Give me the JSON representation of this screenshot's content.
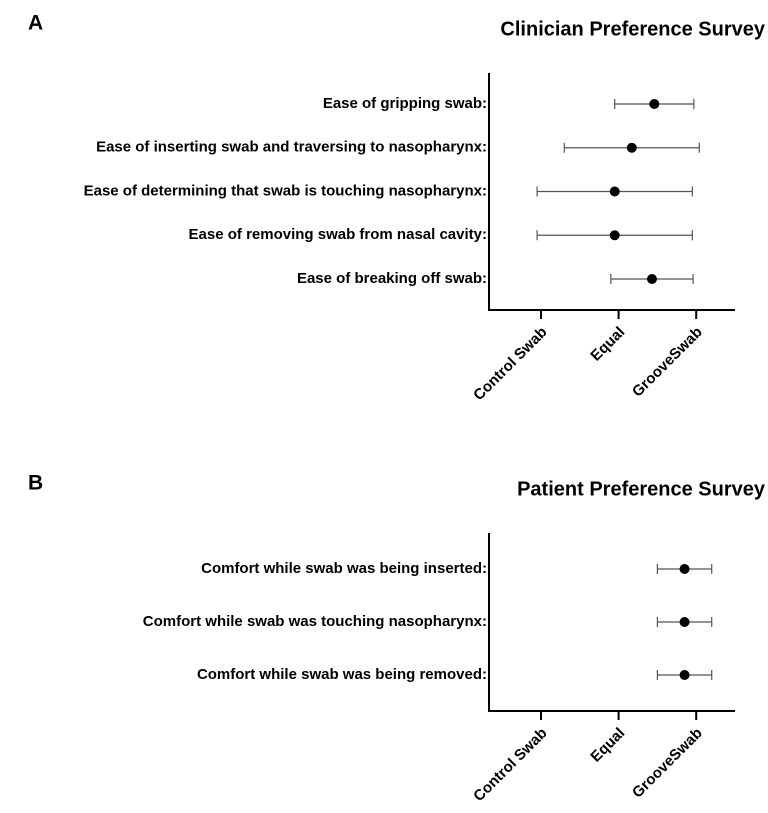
{
  "chart_data": [
    {
      "type": "dot",
      "panel_label": "A",
      "title": "Clinician Preference Survey",
      "categories": [
        "Ease of gripping swab:",
        "Ease of inserting swab and traversing to nasopharynx:",
        "Ease of determining that swab is touching nasopharynx:",
        "Ease of removing swab from nasal cavity:",
        "Ease of breaking off swab:"
      ],
      "values": [
        0.46,
        0.17,
        -0.05,
        -0.05,
        0.43
      ],
      "errors": [
        0.51,
        0.87,
        1.0,
        1.0,
        0.53
      ],
      "xlim": [
        -1.67,
        1.5
      ],
      "xticks": [
        {
          "value": -1,
          "label": "Control Swab"
        },
        {
          "value": 0,
          "label": "Equal"
        },
        {
          "value": 1,
          "label": "GrooveSwab"
        }
      ],
      "color": "#000000",
      "error_color": "#555555"
    },
    {
      "type": "dot",
      "panel_label": "B",
      "title": "Patient Preference Survey",
      "categories": [
        "Comfort while swab was being inserted:",
        "Comfort while swab was touching nasopharynx:",
        "Comfort while swab was being removed:"
      ],
      "values": [
        0.85,
        0.85,
        0.85
      ],
      "errors": [
        0.35,
        0.35,
        0.35
      ],
      "xlim": [
        -1.67,
        1.5
      ],
      "xticks": [
        {
          "value": -1,
          "label": "Control Swab"
        },
        {
          "value": 0,
          "label": "Equal"
        },
        {
          "value": 1,
          "label": "GrooveSwab"
        }
      ],
      "color": "#000000",
      "error_color": "#555555"
    }
  ]
}
